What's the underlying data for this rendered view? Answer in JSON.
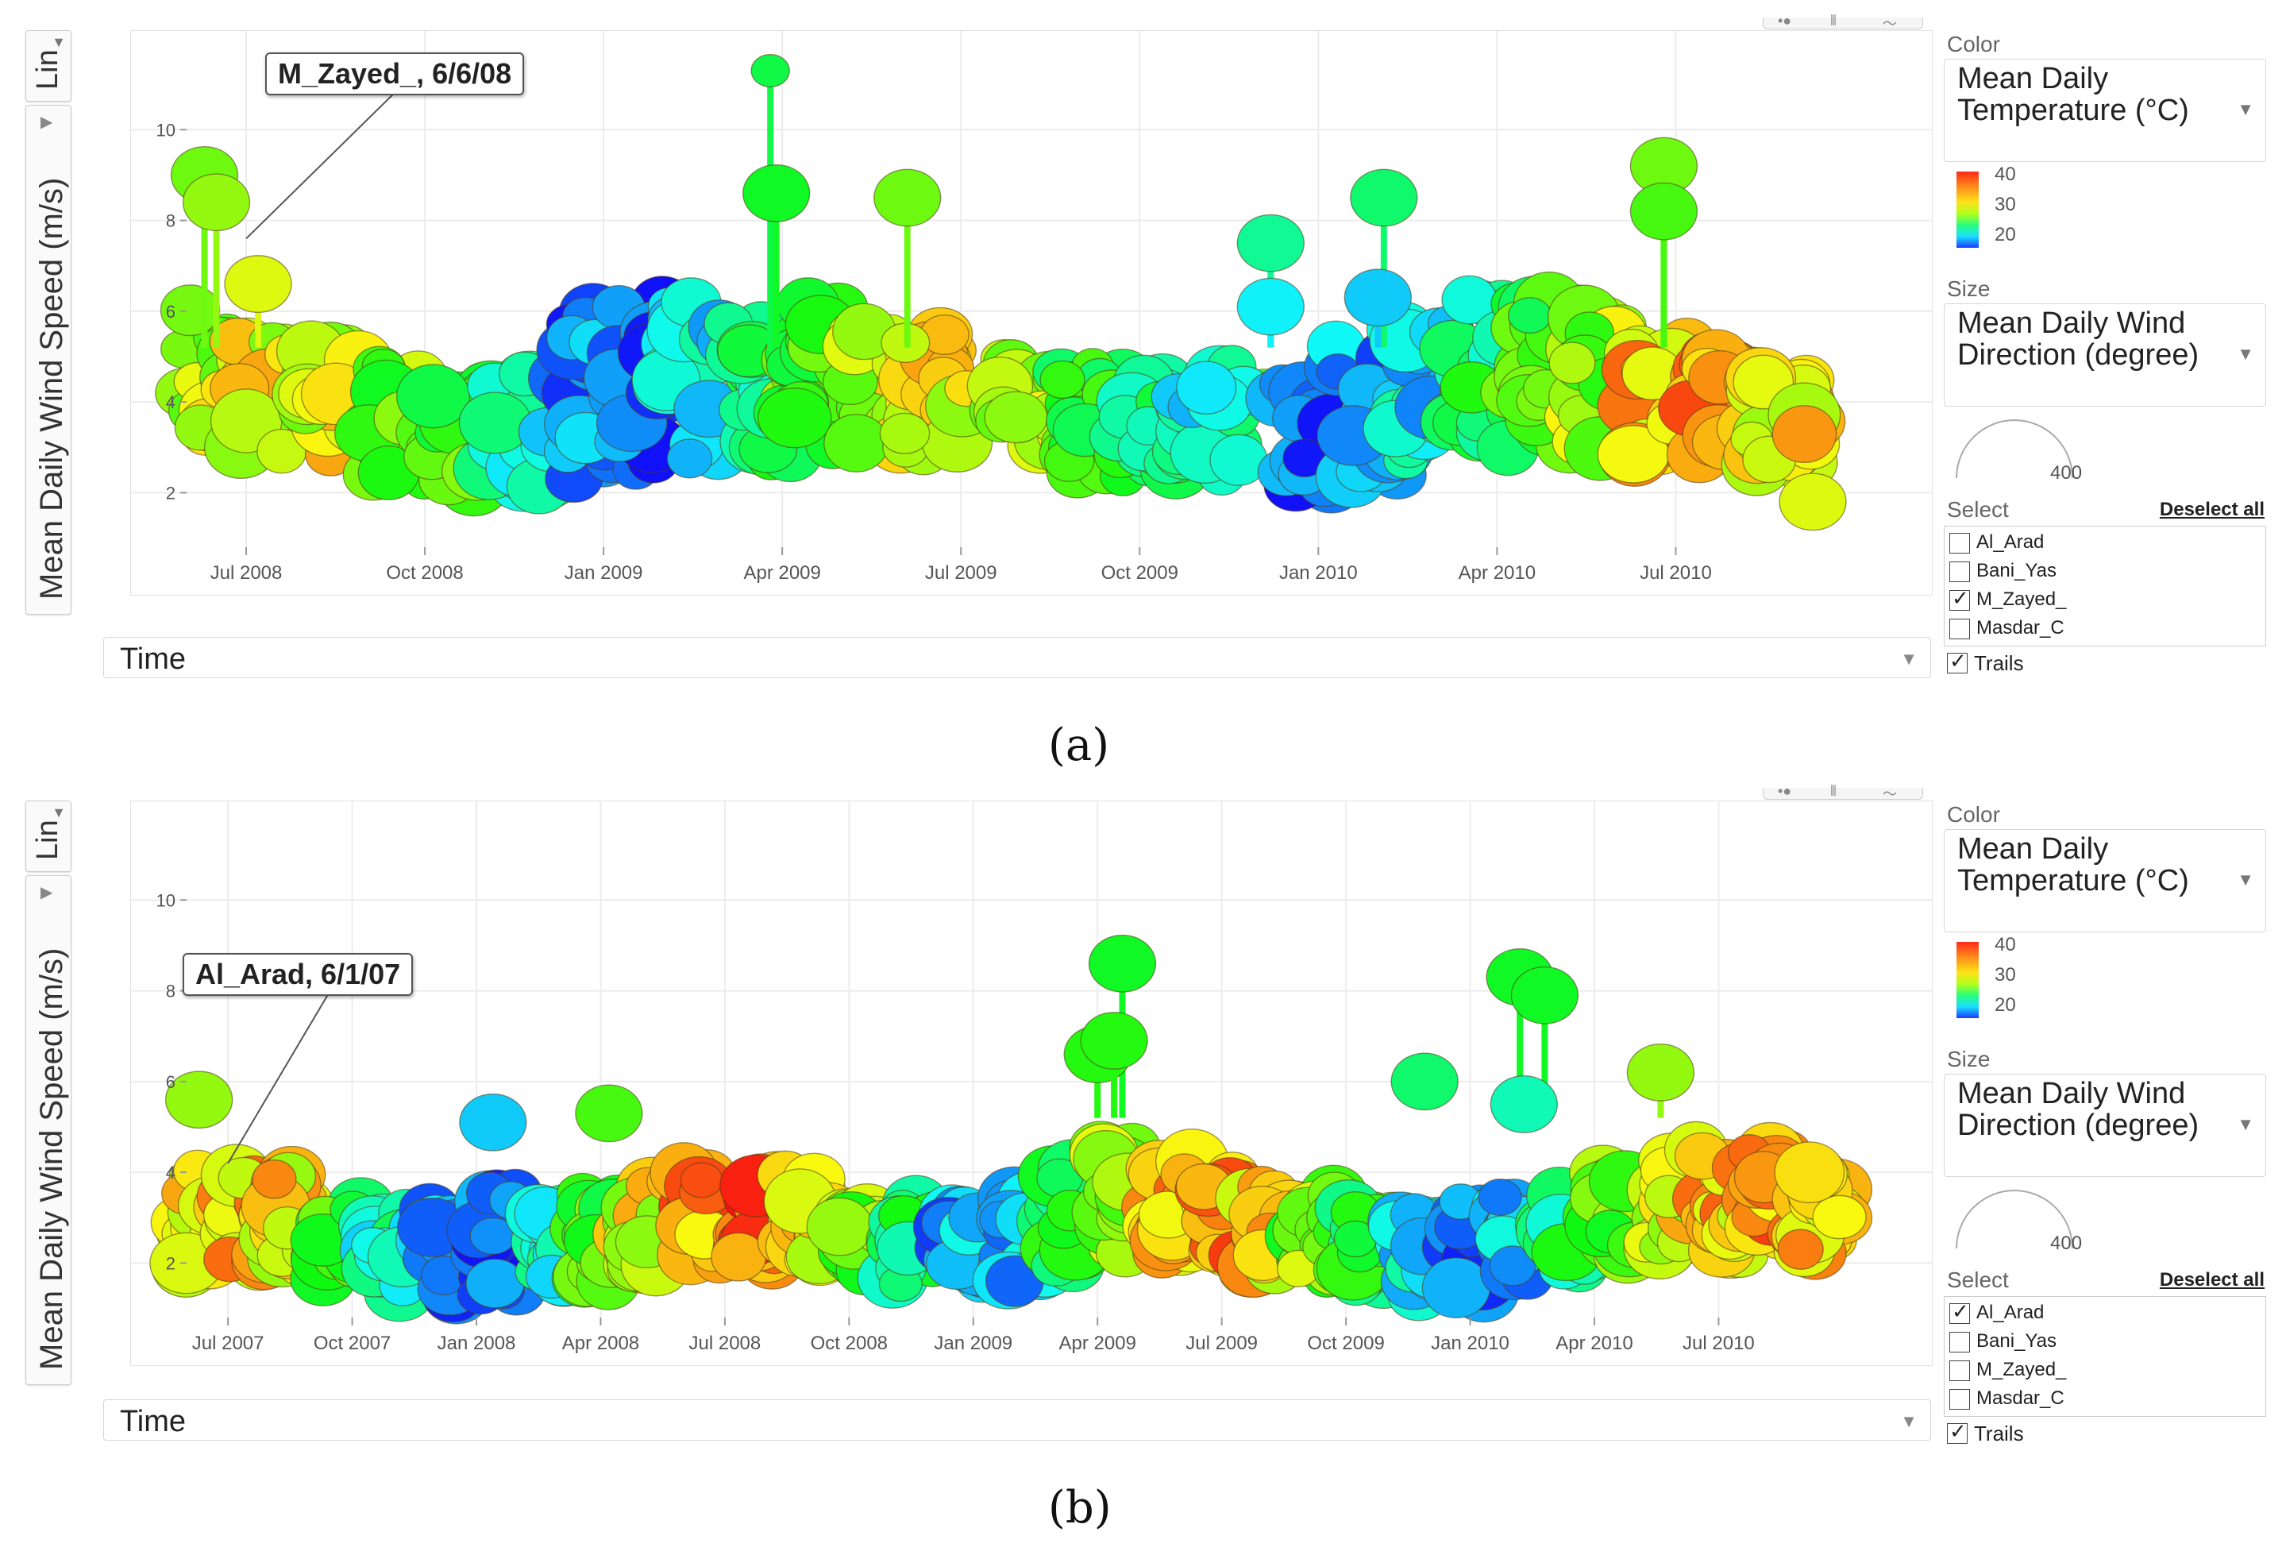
{
  "captions": {
    "a": "(a)",
    "b": "(b)"
  },
  "panels": [
    {
      "scale_label": "Lin",
      "y_axis_label": "Mean Daily Wind Speed (m/s)",
      "x_axis_label": "Time",
      "annotation": "M_Zayed_, 6/6/08",
      "sidebar": {
        "color_section": "Color",
        "color_value": "Mean Daily Temperature (°C)",
        "color_ticks": [
          "40",
          "30",
          "20"
        ],
        "size_section": "Size",
        "size_value": "Mean Daily Wind Direction (degree)",
        "size_max": "400",
        "select_section": "Select",
        "deselect_all": "Deselect all",
        "stations": [
          {
            "name": "Al_Arad",
            "checked": false
          },
          {
            "name": "Bani_Yas",
            "checked": false
          },
          {
            "name": "M_Zayed_",
            "checked": true
          },
          {
            "name": "Masdar_C",
            "checked": false
          }
        ],
        "trails_label": "Trails",
        "trails_checked": true
      }
    },
    {
      "scale_label": "Lin",
      "y_axis_label": "Mean Daily Wind Speed (m/s)",
      "x_axis_label": "Time",
      "annotation": "Al_Arad, 6/1/07",
      "sidebar": {
        "color_section": "Color",
        "color_value": "Mean Daily Temperature (°C)",
        "color_ticks": [
          "40",
          "30",
          "20"
        ],
        "size_section": "Size",
        "size_value": "Mean Daily Wind Direction (degree)",
        "size_max": "400",
        "select_section": "Select",
        "deselect_all": "Deselect all",
        "stations": [
          {
            "name": "Al_Arad",
            "checked": true
          },
          {
            "name": "Bani_Yas",
            "checked": false
          },
          {
            "name": "M_Zayed_",
            "checked": false
          },
          {
            "name": "Masdar_C",
            "checked": false
          }
        ],
        "trails_label": "Trails",
        "trails_checked": true
      }
    }
  ],
  "chart_data": [
    {
      "type": "scatter",
      "title": "",
      "station": "M_Zayed_",
      "xlabel": "Time",
      "ylabel": "Mean Daily Wind Speed (m/s)",
      "color_encoding": "Mean Daily Temperature (°C)",
      "color_range": [
        15,
        40
      ],
      "size_encoding": "Mean Daily Wind Direction (degree)",
      "x_range_months": [
        0,
        28.5
      ],
      "ylim": [
        0.8,
        12
      ],
      "y_ticks": [
        2,
        4,
        6,
        8,
        10
      ],
      "x_ticks": [
        {
          "label": "Jul 2008",
          "m": 1
        },
        {
          "label": "Oct 2008",
          "m": 4
        },
        {
          "label": "Jan 2009",
          "m": 7
        },
        {
          "label": "Apr 2009",
          "m": 10
        },
        {
          "label": "Jul 2009",
          "m": 13
        },
        {
          "label": "Oct 2009",
          "m": 16
        },
        {
          "label": "Jan 2010",
          "m": 19
        },
        {
          "label": "Apr 2010",
          "m": 22
        },
        {
          "label": "Jul 2010",
          "m": 25
        }
      ],
      "clusters": [
        {
          "m": 0.5,
          "y": 4.6,
          "temp": 32,
          "spread": 1.6
        },
        {
          "m": 1.4,
          "y": 4.2,
          "temp": 33,
          "spread": 1.3
        },
        {
          "m": 2.5,
          "y": 4.0,
          "temp": 33,
          "spread": 1.2
        },
        {
          "m": 3.6,
          "y": 3.6,
          "temp": 30,
          "spread": 1.4
        },
        {
          "m": 4.6,
          "y": 3.4,
          "temp": 28,
          "spread": 1.3
        },
        {
          "m": 5.6,
          "y": 3.6,
          "temp": 23,
          "spread": 1.6
        },
        {
          "m": 6.6,
          "y": 4.0,
          "temp": 18,
          "spread": 2.0
        },
        {
          "m": 7.6,
          "y": 4.4,
          "temp": 17,
          "spread": 2.0
        },
        {
          "m": 8.6,
          "y": 4.4,
          "temp": 21,
          "spread": 1.8
        },
        {
          "m": 9.6,
          "y": 4.2,
          "temp": 25,
          "spread": 1.6
        },
        {
          "m": 10.6,
          "y": 4.6,
          "temp": 29,
          "spread": 1.6
        },
        {
          "m": 11.6,
          "y": 4.4,
          "temp": 32,
          "spread": 1.4
        },
        {
          "m": 12.6,
          "y": 4.2,
          "temp": 33,
          "spread": 1.3
        },
        {
          "m": 14.2,
          "y": 3.8,
          "temp": 31,
          "spread": 1.2
        },
        {
          "m": 15.2,
          "y": 3.6,
          "temp": 28,
          "spread": 1.2
        },
        {
          "m": 16.2,
          "y": 3.4,
          "temp": 25,
          "spread": 1.2
        },
        {
          "m": 17.2,
          "y": 3.6,
          "temp": 22,
          "spread": 1.2
        },
        {
          "m": 18.8,
          "y": 3.4,
          "temp": 17,
          "spread": 1.3
        },
        {
          "m": 19.8,
          "y": 3.8,
          "temp": 19,
          "spread": 1.5
        },
        {
          "m": 20.8,
          "y": 4.2,
          "temp": 21,
          "spread": 1.6
        },
        {
          "m": 21.8,
          "y": 4.6,
          "temp": 25,
          "spread": 1.7
        },
        {
          "m": 22.8,
          "y": 4.6,
          "temp": 28,
          "spread": 1.6
        },
        {
          "m": 23.8,
          "y": 4.4,
          "temp": 31,
          "spread": 1.5
        },
        {
          "m": 24.8,
          "y": 4.2,
          "temp": 35,
          "spread": 1.4
        },
        {
          "m": 25.8,
          "y": 4.0,
          "temp": 36,
          "spread": 1.3
        },
        {
          "m": 26.8,
          "y": 3.6,
          "temp": 34,
          "spread": 1.0
        }
      ],
      "highlights": [
        {
          "m": 0.3,
          "y": 9.0,
          "temp": 30
        },
        {
          "m": 0.5,
          "y": 8.4,
          "temp": 31
        },
        {
          "m": 1.2,
          "y": 6.6,
          "temp": 33
        },
        {
          "m": 9.8,
          "y": 11.3,
          "temp": 26
        },
        {
          "m": 9.9,
          "y": 8.6,
          "temp": 27
        },
        {
          "m": 12.1,
          "y": 8.5,
          "temp": 30
        },
        {
          "m": 18.2,
          "y": 7.5,
          "temp": 24
        },
        {
          "m": 18.2,
          "y": 6.1,
          "temp": 21
        },
        {
          "m": 20.1,
          "y": 8.5,
          "temp": 25
        },
        {
          "m": 20.0,
          "y": 6.3,
          "temp": 20
        },
        {
          "m": 24.8,
          "y": 9.2,
          "temp": 30
        },
        {
          "m": 24.8,
          "y": 8.2,
          "temp": 29
        },
        {
          "m": 27.3,
          "y": 1.8,
          "temp": 33
        }
      ],
      "gap_bars": [
        {
          "m0": 13.2,
          "m1": 14.0,
          "y": 4.2,
          "temp": 27
        },
        {
          "m0": 17.7,
          "m1": 18.5,
          "y": 4.2,
          "temp": 27
        }
      ]
    },
    {
      "type": "scatter",
      "title": "",
      "station": "Al_Arad",
      "xlabel": "Time",
      "ylabel": "Mean Daily Wind Speed (m/s)",
      "color_encoding": "Mean Daily Temperature (°C)",
      "color_range": [
        15,
        40
      ],
      "size_encoding": "Mean Daily Wind Direction (degree)",
      "x_range_months": [
        0,
        41
      ],
      "ylim": [
        0.8,
        12
      ],
      "y_ticks": [
        2,
        4,
        6,
        8,
        10
      ],
      "x_ticks": [
        {
          "label": "Jul 2007",
          "m": 1
        },
        {
          "label": "Oct 2007",
          "m": 4
        },
        {
          "label": "Jan 2008",
          "m": 7
        },
        {
          "label": "Apr 2008",
          "m": 10
        },
        {
          "label": "Jul 2008",
          "m": 13
        },
        {
          "label": "Oct 2008",
          "m": 16
        },
        {
          "label": "Jan 2009",
          "m": 19
        },
        {
          "label": "Apr 2009",
          "m": 22
        },
        {
          "label": "Jul 2009",
          "m": 25
        },
        {
          "label": "Oct 2009",
          "m": 28
        },
        {
          "label": "Jan 2010",
          "m": 31
        },
        {
          "label": "Apr 2010",
          "m": 34
        },
        {
          "label": "Jul 2010",
          "m": 37
        }
      ],
      "clusters": [
        {
          "m": 0.5,
          "y": 3.0,
          "temp": 34,
          "spread": 1.1
        },
        {
          "m": 1.5,
          "y": 3.0,
          "temp": 35,
          "spread": 1.0
        },
        {
          "m": 2.6,
          "y": 3.0,
          "temp": 34,
          "spread": 1.0
        },
        {
          "m": 3.8,
          "y": 2.4,
          "temp": 28,
          "spread": 0.9
        },
        {
          "m": 5.0,
          "y": 2.2,
          "temp": 23,
          "spread": 0.9
        },
        {
          "m": 6.3,
          "y": 2.2,
          "temp": 18,
          "spread": 1.0
        },
        {
          "m": 7.5,
          "y": 2.4,
          "temp": 17,
          "spread": 1.2
        },
        {
          "m": 8.8,
          "y": 2.4,
          "temp": 22,
          "spread": 1.0
        },
        {
          "m": 10.0,
          "y": 2.6,
          "temp": 28,
          "spread": 1.0
        },
        {
          "m": 11.2,
          "y": 2.8,
          "temp": 33,
          "spread": 1.0
        },
        {
          "m": 12.5,
          "y": 3.0,
          "temp": 36,
          "spread": 1.0
        },
        {
          "m": 13.8,
          "y": 3.0,
          "temp": 37,
          "spread": 1.0
        },
        {
          "m": 15.0,
          "y": 3.0,
          "temp": 34,
          "spread": 1.0
        },
        {
          "m": 16.3,
          "y": 2.6,
          "temp": 30,
          "spread": 0.9
        },
        {
          "m": 17.6,
          "y": 2.4,
          "temp": 25,
          "spread": 0.9
        },
        {
          "m": 18.9,
          "y": 2.4,
          "temp": 19,
          "spread": 0.9
        },
        {
          "m": 20.2,
          "y": 2.6,
          "temp": 20,
          "spread": 1.0
        },
        {
          "m": 21.4,
          "y": 3.0,
          "temp": 26,
          "spread": 1.1
        },
        {
          "m": 22.6,
          "y": 3.4,
          "temp": 31,
          "spread": 1.2
        },
        {
          "m": 23.8,
          "y": 3.2,
          "temp": 35,
          "spread": 1.1
        },
        {
          "m": 25.0,
          "y": 3.0,
          "temp": 36,
          "spread": 1.0
        },
        {
          "m": 26.2,
          "y": 2.8,
          "temp": 34,
          "spread": 1.0
        },
        {
          "m": 27.4,
          "y": 2.6,
          "temp": 30,
          "spread": 1.0
        },
        {
          "m": 28.6,
          "y": 2.4,
          "temp": 26,
          "spread": 1.0
        },
        {
          "m": 29.8,
          "y": 2.2,
          "temp": 21,
          "spread": 1.0
        },
        {
          "m": 31.0,
          "y": 2.4,
          "temp": 18,
          "spread": 1.0
        },
        {
          "m": 32.2,
          "y": 2.6,
          "temp": 20,
          "spread": 1.0
        },
        {
          "m": 33.4,
          "y": 2.8,
          "temp": 25,
          "spread": 1.0
        },
        {
          "m": 34.6,
          "y": 3.0,
          "temp": 30,
          "spread": 1.0
        },
        {
          "m": 35.8,
          "y": 3.2,
          "temp": 33,
          "spread": 1.1
        },
        {
          "m": 37.0,
          "y": 3.4,
          "temp": 35,
          "spread": 1.2
        },
        {
          "m": 38.2,
          "y": 3.4,
          "temp": 36,
          "spread": 1.2
        },
        {
          "m": 39.4,
          "y": 3.2,
          "temp": 35,
          "spread": 1.0
        }
      ],
      "highlights": [
        {
          "m": 0.3,
          "y": 5.6,
          "temp": 31
        },
        {
          "m": 7.4,
          "y": 5.1,
          "temp": 20
        },
        {
          "m": 10.2,
          "y": 5.3,
          "temp": 29
        },
        {
          "m": 22.6,
          "y": 8.6,
          "temp": 27
        },
        {
          "m": 22.0,
          "y": 6.6,
          "temp": 28
        },
        {
          "m": 22.4,
          "y": 6.9,
          "temp": 28
        },
        {
          "m": 29.9,
          "y": 6.0,
          "temp": 25
        },
        {
          "m": 32.2,
          "y": 8.3,
          "temp": 27
        },
        {
          "m": 32.8,
          "y": 7.9,
          "temp": 27
        },
        {
          "m": 32.3,
          "y": 5.5,
          "temp": 23
        },
        {
          "m": 35.6,
          "y": 6.2,
          "temp": 31
        }
      ],
      "gap_bars": []
    }
  ]
}
